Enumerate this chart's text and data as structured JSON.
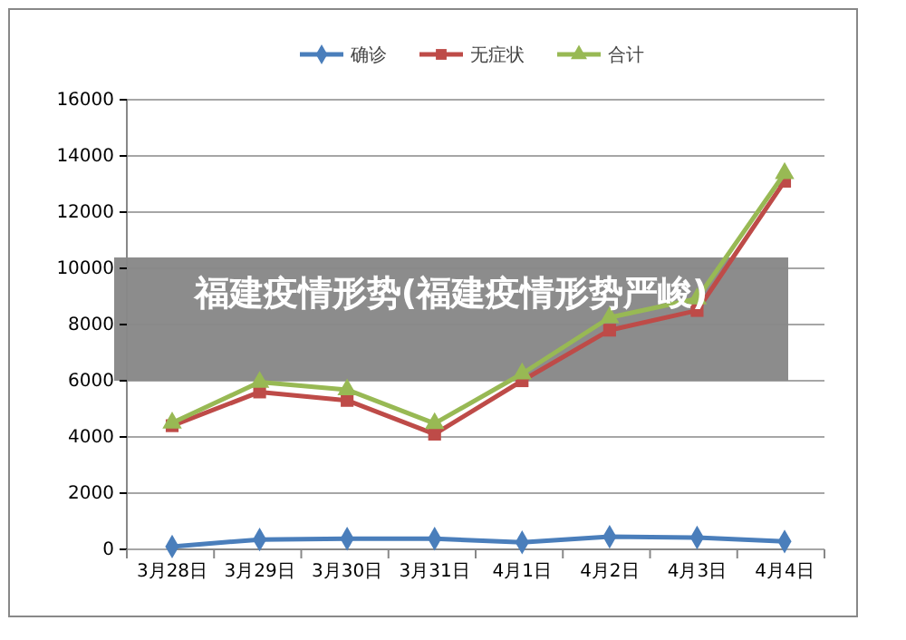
{
  "chart_data": {
    "type": "line",
    "title": "福建疫情形势(福建疫情形势严峻)",
    "categories": [
      "3月28日",
      "3月29日",
      "3月30日",
      "3月31日",
      "4月1日",
      "4月2日",
      "4月3日",
      "4月4日"
    ],
    "series": [
      {
        "name": "确诊",
        "color": "#4a7ebb",
        "marker": "diamond",
        "values": [
          100,
          350,
          380,
          380,
          250,
          450,
          420,
          280
        ]
      },
      {
        "name": "无症状",
        "color": "#be4b48",
        "marker": "square",
        "values": [
          4400,
          5600,
          5300,
          4100,
          6000,
          7800,
          8500,
          13100
        ]
      },
      {
        "name": "合计",
        "color": "#98b954",
        "marker": "triangle",
        "values": [
          4500,
          5950,
          5680,
          4480,
          6250,
          8250,
          8920,
          13380
        ]
      }
    ],
    "ylim": [
      0,
      16000
    ],
    "yticks": [
      0,
      2000,
      4000,
      6000,
      8000,
      10000,
      12000,
      14000,
      16000
    ],
    "grid": "y",
    "legend": "top"
  }
}
